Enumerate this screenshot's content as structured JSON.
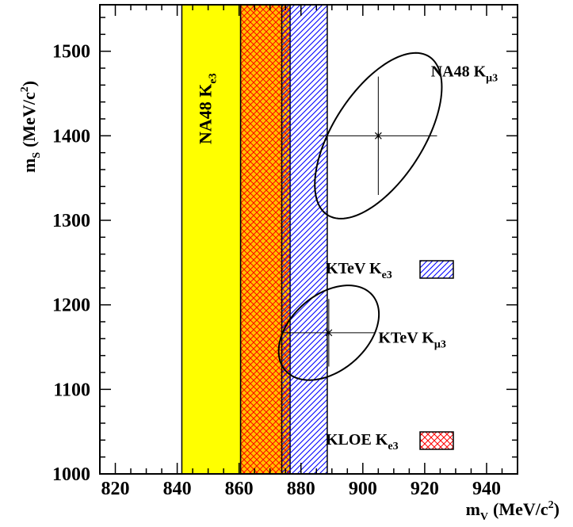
{
  "chart_data": {
    "type": "band-and-ellipse",
    "xlabel": "m",
    "xlabel_sub": "V",
    "xlabel_unit": "(MeV/c",
    "xlabel_sup": "2",
    "xlabel_close": ")",
    "ylabel": "m",
    "ylabel_sub": "S",
    "ylabel_unit": "(MeV/c",
    "ylabel_sup": "2",
    "ylabel_close": ")",
    "xlim": [
      815,
      950
    ],
    "ylim": [
      1000,
      1555
    ],
    "x_ticks": [
      820,
      840,
      860,
      880,
      900,
      920,
      940
    ],
    "y_ticks": [
      1000,
      1100,
      1200,
      1300,
      1400,
      1500
    ],
    "bands": [
      {
        "id": "na48-ke3",
        "x_min": 841.5,
        "x_max": 860.5,
        "fill": "#ffff00",
        "pattern": "solid"
      },
      {
        "id": "kloe-ke3",
        "x_min": 860.5,
        "x_max": 876.5,
        "fill": "#ffc200",
        "pattern": "crosshatch",
        "hatch_color": "#ff0000"
      },
      {
        "id": "ktev-ke3",
        "x_min": 873.8,
        "x_max": 888.5,
        "fill": "#ffffff",
        "pattern": "diagonal",
        "hatch_color": "#0000ff"
      }
    ],
    "band_labels": [
      {
        "text": "NA48 K",
        "sub": "e3",
        "x": 851,
        "y": 1390,
        "rotate": -90
      }
    ],
    "ellipses": [
      {
        "id": "na48-kmu3",
        "center": [
          905,
          1400
        ],
        "x_err": 19,
        "y_err": 70,
        "label": "NA48 K",
        "label_sub": "μ3",
        "label_pos": [
          922,
          1470
        ]
      },
      {
        "id": "ktev-kmu3",
        "center": [
          889,
          1167
        ],
        "x_err": 15,
        "y_err": 40,
        "label": "KTeV K",
        "label_sub": "μ3",
        "label_pos": [
          905,
          1155
        ]
      }
    ],
    "legend": [
      {
        "text": "KTeV K",
        "sub": "e3",
        "band": "ktev-ke3",
        "position": "middle-right"
      },
      {
        "text": "KLOE K",
        "sub": "e3",
        "band": "kloe-ke3",
        "position": "bottom-right"
      }
    ]
  }
}
